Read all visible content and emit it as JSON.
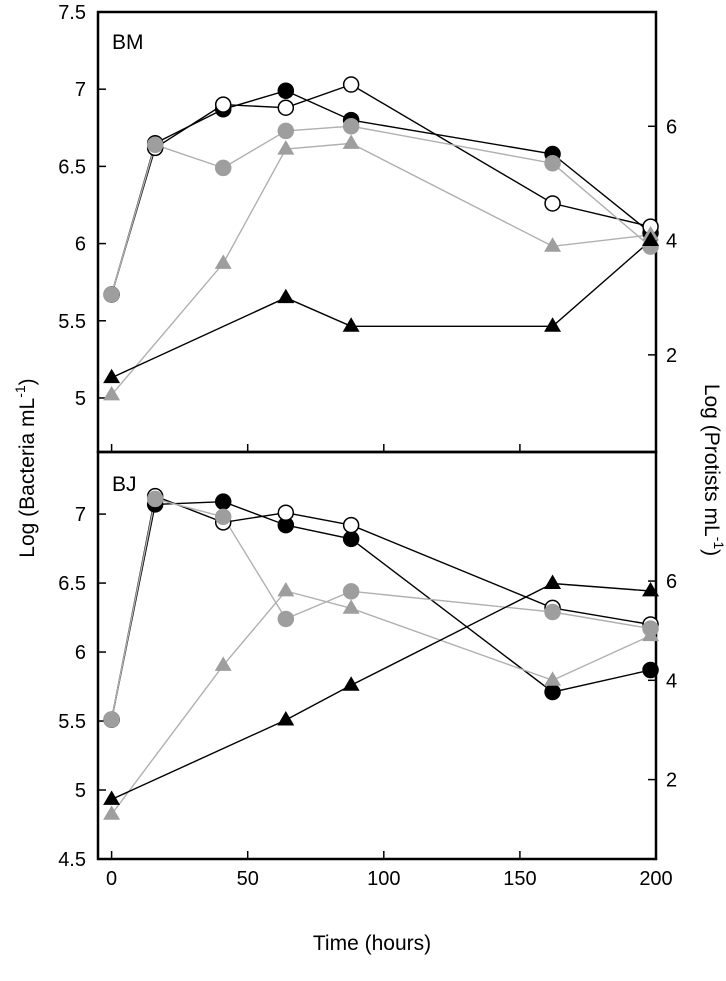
{
  "chart_data": [
    {
      "type": "line",
      "panel": "BM",
      "xlabel": "Time (hours)",
      "ylabel": "Log (Bacteria mL-1)",
      "y2label": "Log (Protists mL-1)",
      "xlim": [
        -5,
        200
      ],
      "ylim_left": [
        4.65,
        7.5
      ],
      "ylim_right": [
        0.3,
        8.0
      ],
      "y_ticks_left": [
        "7.5",
        "7",
        "6.5",
        "6",
        "5.5",
        "5"
      ],
      "y_ticks_right": [
        "6",
        "4",
        "2"
      ],
      "series": [
        {
          "name": "black circles",
          "axis": "left",
          "marker": "circle",
          "fill": "#000000",
          "stroke": "#000000",
          "line": "#000000",
          "x": [
            0,
            16,
            41,
            64,
            88,
            162,
            198
          ],
          "y": [
            5.67,
            6.65,
            6.87,
            6.99,
            6.8,
            6.58,
            6.07
          ]
        },
        {
          "name": "open circles",
          "axis": "left",
          "marker": "circle",
          "fill": "#ffffff",
          "stroke": "#000000",
          "line": "#000000",
          "x": [
            0,
            16,
            41,
            64,
            88,
            162,
            198
          ],
          "y": [
            5.67,
            6.62,
            6.9,
            6.88,
            7.03,
            6.26,
            6.11
          ]
        },
        {
          "name": "grey circles",
          "axis": "left",
          "marker": "circle",
          "fill": "#9e9e9e",
          "stroke": "#9e9e9e",
          "line": "#b0b0b0",
          "x": [
            0,
            16,
            41,
            64,
            88,
            162,
            198
          ],
          "y": [
            5.67,
            6.64,
            6.49,
            6.73,
            6.76,
            6.52,
            5.98
          ]
        },
        {
          "name": "grey triangles",
          "axis": "right",
          "marker": "triangle",
          "fill": "#9e9e9e",
          "stroke": "#9e9e9e",
          "line": "#b0b0b0",
          "x": [
            0,
            41,
            64,
            88,
            162,
            198
          ],
          "y": [
            1.3,
            3.6,
            5.6,
            5.7,
            3.9,
            4.1
          ]
        },
        {
          "name": "black triangles",
          "axis": "right",
          "marker": "triangle",
          "fill": "#000000",
          "stroke": "#000000",
          "line": "#000000",
          "x": [
            0,
            64,
            88,
            162,
            198
          ],
          "y": [
            1.6,
            3.0,
            2.5,
            2.5,
            4.0
          ]
        }
      ]
    },
    {
      "type": "line",
      "panel": "BJ",
      "xlabel": "Time (hours)",
      "ylabel": "Log (Bacteria mL-1)",
      "y2label": "Log (Protists mL-1)",
      "xlim": [
        -5,
        200
      ],
      "ylim_left": [
        4.5,
        7.45
      ],
      "ylim_right": [
        0.4,
        8.6
      ],
      "x_ticks": [
        "0",
        "50",
        "100",
        "150",
        "200"
      ],
      "y_ticks_left": [
        "7",
        "6.5",
        "6",
        "5.5",
        "5",
        "4.5"
      ],
      "y_ticks_right": [
        "6",
        "4",
        "2"
      ],
      "series": [
        {
          "name": "black circles",
          "axis": "left",
          "marker": "circle",
          "fill": "#000000",
          "stroke": "#000000",
          "line": "#000000",
          "x": [
            0,
            16,
            41,
            64,
            88,
            162,
            198
          ],
          "y": [
            5.51,
            7.07,
            7.09,
            6.92,
            6.82,
            5.71,
            5.87
          ]
        },
        {
          "name": "open circles",
          "axis": "left",
          "marker": "circle",
          "fill": "#ffffff",
          "stroke": "#000000",
          "line": "#000000",
          "x": [
            0,
            16,
            41,
            64,
            88,
            162,
            198
          ],
          "y": [
            5.51,
            7.13,
            6.94,
            7.01,
            6.92,
            6.32,
            6.2
          ]
        },
        {
          "name": "grey circles",
          "axis": "left",
          "marker": "circle",
          "fill": "#9e9e9e",
          "stroke": "#9e9e9e",
          "line": "#b0b0b0",
          "x": [
            0,
            16,
            41,
            64,
            88,
            162,
            198
          ],
          "y": [
            5.51,
            7.11,
            6.98,
            6.24,
            6.44,
            6.29,
            6.17
          ]
        },
        {
          "name": "grey triangles",
          "axis": "right",
          "marker": "triangle",
          "fill": "#9e9e9e",
          "stroke": "#9e9e9e",
          "line": "#b0b0b0",
          "x": [
            0,
            41,
            64,
            88,
            162,
            198
          ],
          "y": [
            1.3,
            4.3,
            5.8,
            5.45,
            4.0,
            4.9
          ]
        },
        {
          "name": "black triangles",
          "axis": "right",
          "marker": "triangle",
          "fill": "#000000",
          "stroke": "#000000",
          "line": "#000000",
          "x": [
            0,
            64,
            88,
            162,
            198
          ],
          "y": [
            1.6,
            3.2,
            3.9,
            5.95,
            5.8
          ]
        }
      ]
    }
  ]
}
